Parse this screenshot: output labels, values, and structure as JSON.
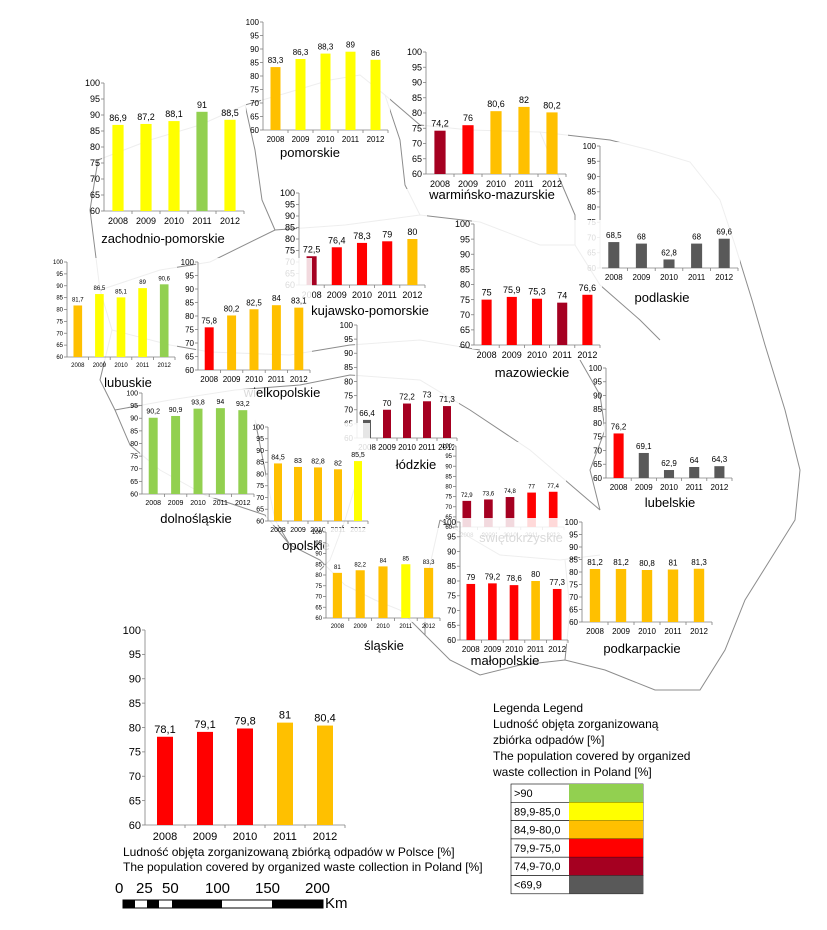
{
  "years": [
    "2008",
    "2009",
    "2010",
    "2011",
    "2012"
  ],
  "colors": {
    "gt90": "#92D050",
    "85to89_9": "#FFFF00",
    "80to84_9": "#FFC000",
    "75to79_9": "#FF0000",
    "70to74_9": "#A50021",
    "lt69_9": "#595959"
  },
  "legend": {
    "title_lines": [
      "Legenda Legend",
      "Ludność objęta zorganizowaną",
      "zbiórka odpadów [%]",
      "The population covered by organized",
      "waste collection in Poland [%]"
    ],
    "items": [
      {
        "label": ">90",
        "color_key": "gt90"
      },
      {
        "label": "89,9-85,0",
        "color_key": "85to89_9"
      },
      {
        "label": "84,9-80,0",
        "color_key": "80to84_9"
      },
      {
        "label": "79,9-75,0",
        "color_key": "75to79_9"
      },
      {
        "label": "74,9-70,0",
        "color_key": "70to74_9"
      },
      {
        "label": "<69,9",
        "color_key": "lt69_9"
      }
    ]
  },
  "national": {
    "caption_pl": "Ludność objęta zorganizowaną zbiórką odpadów w Polsce [%]",
    "caption_en": "The population covered by organized waste collection in Poland [%]"
  },
  "scale": {
    "labels": [
      "0",
      "25",
      "50",
      "100",
      "150",
      "200"
    ],
    "unit": "Km"
  },
  "chart_data": [
    {
      "type": "bar",
      "name": "Polska",
      "categories": [
        "2008",
        "2009",
        "2010",
        "2011",
        "2012"
      ],
      "values": [
        78.1,
        79.1,
        79.8,
        81,
        80.4
      ],
      "value_labels": [
        "78,1",
        "79,1",
        "79,8",
        "81",
        "80,4"
      ],
      "ylim": [
        60,
        100
      ],
      "yticks": [
        "60",
        "65",
        "70",
        "75",
        "80",
        "85",
        "90",
        "95",
        "100"
      ]
    },
    {
      "type": "bar",
      "name": "zachodnio-pomorskie",
      "categories": [
        "2008",
        "2009",
        "2010",
        "2011",
        "2012"
      ],
      "values": [
        86.9,
        87.2,
        88.1,
        91,
        88.5
      ],
      "value_labels": [
        "86,9",
        "87,2",
        "88,1",
        "91",
        "88,5"
      ],
      "ylim": [
        60,
        100
      ],
      "yticks": [
        "60",
        "65",
        "70",
        "75",
        "80",
        "85",
        "90",
        "95",
        "100"
      ]
    },
    {
      "type": "bar",
      "name": "pomorskie",
      "categories": [
        "2008",
        "2009",
        "2010",
        "2011",
        "2012"
      ],
      "values": [
        83.3,
        86.3,
        88.3,
        89,
        86
      ],
      "value_labels": [
        "83,3",
        "86,3",
        "88,3",
        "89",
        "86"
      ],
      "ylim": [
        60,
        100
      ],
      "yticks": [
        "60",
        "65",
        "70",
        "75",
        "80",
        "85",
        "90",
        "95",
        "100"
      ]
    },
    {
      "type": "bar",
      "name": "warmińsko-mazurskie",
      "categories": [
        "2008",
        "2009",
        "2010",
        "2011",
        "2012"
      ],
      "values": [
        74.2,
        76,
        80.6,
        82,
        80.2
      ],
      "value_labels": [
        "74,2",
        "76",
        "80,6",
        "82",
        "80,2"
      ],
      "ylim": [
        60,
        100
      ],
      "yticks": [
        "60",
        "65",
        "70",
        "75",
        "80",
        "85",
        "90",
        "95",
        "100"
      ]
    },
    {
      "type": "bar",
      "name": "podlaskie",
      "categories": [
        "2008",
        "2009",
        "2010",
        "2011",
        "2012"
      ],
      "values": [
        68.5,
        68,
        62.8,
        68,
        69.6
      ],
      "value_labels": [
        "68,5",
        "68",
        "62,8",
        "68",
        "69,6"
      ],
      "ylim": [
        60,
        100
      ],
      "yticks": [
        "60",
        "65",
        "70",
        "75",
        "80",
        "85",
        "90",
        "95",
        "100"
      ]
    },
    {
      "type": "bar",
      "name": "kujawsko-pomorskie",
      "categories": [
        "2008",
        "2009",
        "2010",
        "2011",
        "2012"
      ],
      "values": [
        72.5,
        76.4,
        78.3,
        79,
        80
      ],
      "value_labels": [
        "72,5",
        "76,4",
        "78,3",
        "79",
        "80"
      ],
      "ylim": [
        60,
        100
      ],
      "yticks": [
        "60",
        "65",
        "70",
        "75",
        "80",
        "85",
        "90",
        "95",
        "100"
      ]
    },
    {
      "type": "bar",
      "name": "mazowieckie",
      "categories": [
        "2008",
        "2009",
        "2010",
        "2011",
        "2012"
      ],
      "values": [
        75,
        75.9,
        75.3,
        74,
        76.6
      ],
      "value_labels": [
        "75",
        "75,9",
        "75,3",
        "74",
        "76,6"
      ],
      "ylim": [
        60,
        100
      ],
      "yticks": [
        "60",
        "65",
        "70",
        "75",
        "80",
        "85",
        "90",
        "95",
        "100"
      ]
    },
    {
      "type": "bar",
      "name": "lubuskie",
      "categories": [
        "2008",
        "2009",
        "2010",
        "2011",
        "2012"
      ],
      "values": [
        81.7,
        86.5,
        85.1,
        89,
        90.6
      ],
      "value_labels": [
        "81,7",
        "86,5",
        "85,1",
        "89",
        "90,6"
      ],
      "ylim": [
        60,
        100
      ],
      "yticks": [
        "60",
        "65",
        "70",
        "75",
        "80",
        "85",
        "90",
        "95",
        "100"
      ]
    },
    {
      "type": "bar",
      "name": "wielkopolskie",
      "categories": [
        "2008",
        "2009",
        "2010",
        "2011",
        "2012"
      ],
      "values": [
        75.8,
        80.2,
        82.5,
        84,
        83.1
      ],
      "value_labels": [
        "75,8",
        "80,2",
        "82,5",
        "84",
        "83,1"
      ],
      "ylim": [
        60,
        100
      ],
      "yticks": [
        "60",
        "65",
        "70",
        "75",
        "80",
        "85",
        "90",
        "95",
        "100"
      ]
    },
    {
      "type": "bar",
      "name": "łódzkie",
      "categories": [
        "2008",
        "2009",
        "2010",
        "2011",
        "2012"
      ],
      "values": [
        66.4,
        70,
        72.2,
        73,
        71.3
      ],
      "value_labels": [
        "66,4",
        "70",
        "72,2",
        "73",
        "71,3"
      ],
      "ylim": [
        60,
        100
      ],
      "yticks": [
        "60",
        "65",
        "70",
        "75",
        "80",
        "85",
        "90",
        "95",
        "100"
      ]
    },
    {
      "type": "bar",
      "name": "lubelskie",
      "categories": [
        "2008",
        "2009",
        "2010",
        "2011",
        "2012"
      ],
      "values": [
        76.2,
        69.1,
        62.9,
        64,
        64.3
      ],
      "value_labels": [
        "76,2",
        "69,1",
        "62,9",
        "64",
        "64,3"
      ],
      "ylim": [
        60,
        100
      ],
      "yticks": [
        "60",
        "65",
        "70",
        "75",
        "80",
        "85",
        "90",
        "95",
        "100"
      ]
    },
    {
      "type": "bar",
      "name": "dolnośląskie",
      "categories": [
        "2008",
        "2009",
        "2010",
        "2011",
        "2012"
      ],
      "values": [
        90.2,
        90.9,
        93.8,
        94,
        93.2
      ],
      "value_labels": [
        "90,2",
        "90,9",
        "93,8",
        "94",
        "93,2"
      ],
      "ylim": [
        60,
        100
      ],
      "yticks": [
        "60",
        "65",
        "70",
        "75",
        "80",
        "85",
        "90",
        "95",
        "100"
      ]
    },
    {
      "type": "bar",
      "name": "opolskie",
      "categories": [
        "2008",
        "2009",
        "2010",
        "2011",
        "2012"
      ],
      "values": [
        84.5,
        83,
        82.8,
        82,
        85.5
      ],
      "value_labels": [
        "84,5",
        "83",
        "82,8",
        "82",
        "85,5"
      ],
      "ylim": [
        60,
        100
      ],
      "yticks": [
        "60",
        "65",
        "70",
        "75",
        "80",
        "85",
        "90",
        "95",
        "100"
      ]
    },
    {
      "type": "bar",
      "name": "świętokrzyskie",
      "categories": [
        "2008",
        "2009",
        "2010",
        "2011",
        "2012"
      ],
      "values": [
        72.9,
        73.6,
        74.8,
        77,
        77.4
      ],
      "value_labels": [
        "72,9",
        "73,6",
        "74,8",
        "77",
        "77,4"
      ],
      "ylim": [
        60,
        100
      ],
      "yticks": [
        "60",
        "65",
        "70",
        "75",
        "80",
        "85",
        "90",
        "95",
        "100"
      ]
    },
    {
      "type": "bar",
      "name": "śląskie",
      "categories": [
        "2008",
        "2009",
        "2010",
        "2011",
        "2012"
      ],
      "values": [
        81,
        82.2,
        84,
        85,
        83.3
      ],
      "value_labels": [
        "81",
        "82,2",
        "84",
        "85",
        "83,3"
      ],
      "ylim": [
        60,
        100
      ],
      "yticks": [
        "60",
        "65",
        "70",
        "75",
        "80",
        "85",
        "90",
        "95",
        "100"
      ]
    },
    {
      "type": "bar",
      "name": "małopolskie",
      "categories": [
        "2008",
        "2009",
        "2010",
        "2011",
        "2012"
      ],
      "values": [
        79,
        79.2,
        78.6,
        80,
        77.3
      ],
      "value_labels": [
        "79",
        "79,2",
        "78,6",
        "80",
        "77,3"
      ],
      "ylim": [
        60,
        100
      ],
      "yticks": [
        "60",
        "65",
        "70",
        "75",
        "80",
        "85",
        "90",
        "95",
        "100"
      ]
    },
    {
      "type": "bar",
      "name": "podkarpackie",
      "categories": [
        "2008",
        "2009",
        "2010",
        "2011",
        "2012"
      ],
      "values": [
        81.2,
        81.2,
        80.8,
        81,
        81.3
      ],
      "value_labels": [
        "81,2",
        "81,2",
        "80,8",
        "81",
        "81,3"
      ],
      "ylim": [
        60,
        100
      ],
      "yticks": [
        "60",
        "65",
        "70",
        "75",
        "80",
        "85",
        "90",
        "95",
        "100"
      ]
    }
  ]
}
